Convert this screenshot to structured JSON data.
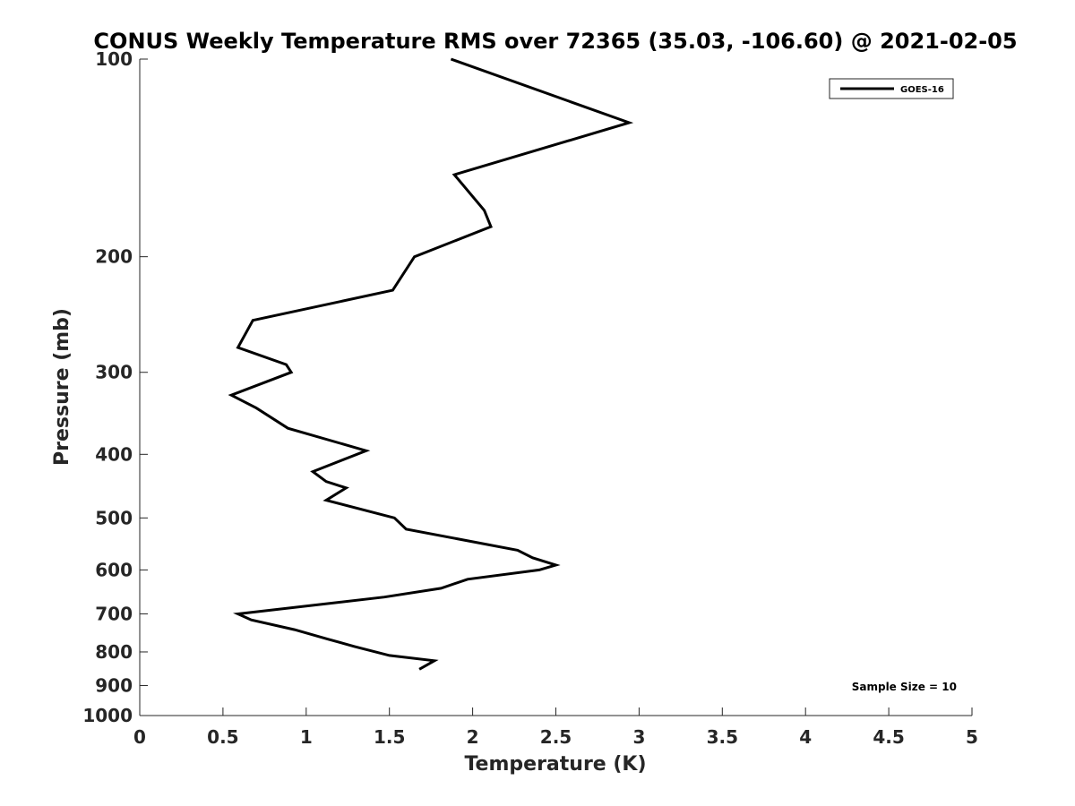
{
  "chart_data": {
    "type": "line",
    "title": "CONUS Weekly Temperature RMS over 72365 (35.03, -106.60) @ 2021-02-05",
    "xlabel": "Temperature (K)",
    "ylabel": "Pressure (mb)",
    "xlim": [
      0,
      5
    ],
    "ylim": [
      100,
      1000
    ],
    "y_scale": "log",
    "y_reversed": true,
    "grid": false,
    "legend_position": "top-right",
    "xticks": [
      "0",
      "0.5",
      "1",
      "1.5",
      "2",
      "2.5",
      "3",
      "3.5",
      "4",
      "4.5",
      "5"
    ],
    "yticks": [
      {
        "value": 100,
        "label": "100"
      },
      {
        "value": 200,
        "label": "200"
      },
      {
        "value": 300,
        "label": "300"
      },
      {
        "value": 400,
        "label": "400"
      },
      {
        "value": 500,
        "label": "500"
      },
      {
        "value": 600,
        "label": "600"
      },
      {
        "value": 700,
        "label": "700"
      },
      {
        "value": 800,
        "label": "800"
      },
      {
        "value": 900,
        "label": "900"
      },
      {
        "value": 1000,
        "label": "1000"
      }
    ],
    "annotation": "Sample Size = 10",
    "series": [
      {
        "name": "GOES-16",
        "color": "#000000",
        "points": [
          {
            "x": 1.87,
            "p": 100
          },
          {
            "x": 2.94,
            "p": 125
          },
          {
            "x": 1.89,
            "p": 150
          },
          {
            "x": 2.07,
            "p": 170
          },
          {
            "x": 2.11,
            "p": 180
          },
          {
            "x": 1.65,
            "p": 200
          },
          {
            "x": 1.52,
            "p": 225
          },
          {
            "x": 0.68,
            "p": 250
          },
          {
            "x": 0.59,
            "p": 275
          },
          {
            "x": 0.88,
            "p": 292
          },
          {
            "x": 0.91,
            "p": 300
          },
          {
            "x": 0.55,
            "p": 325
          },
          {
            "x": 0.7,
            "p": 340
          },
          {
            "x": 0.89,
            "p": 365
          },
          {
            "x": 1.36,
            "p": 395
          },
          {
            "x": 1.04,
            "p": 425
          },
          {
            "x": 1.12,
            "p": 440
          },
          {
            "x": 1.24,
            "p": 450
          },
          {
            "x": 1.12,
            "p": 470
          },
          {
            "x": 1.53,
            "p": 500
          },
          {
            "x": 1.6,
            "p": 520
          },
          {
            "x": 2.27,
            "p": 560
          },
          {
            "x": 2.36,
            "p": 575
          },
          {
            "x": 2.5,
            "p": 590
          },
          {
            "x": 2.4,
            "p": 600
          },
          {
            "x": 1.97,
            "p": 620
          },
          {
            "x": 1.81,
            "p": 640
          },
          {
            "x": 1.47,
            "p": 660
          },
          {
            "x": 0.59,
            "p": 700
          },
          {
            "x": 0.67,
            "p": 715
          },
          {
            "x": 0.93,
            "p": 740
          },
          {
            "x": 1.13,
            "p": 765
          },
          {
            "x": 1.29,
            "p": 785
          },
          {
            "x": 1.5,
            "p": 810
          },
          {
            "x": 1.77,
            "p": 825
          },
          {
            "x": 1.68,
            "p": 850
          }
        ]
      }
    ]
  }
}
